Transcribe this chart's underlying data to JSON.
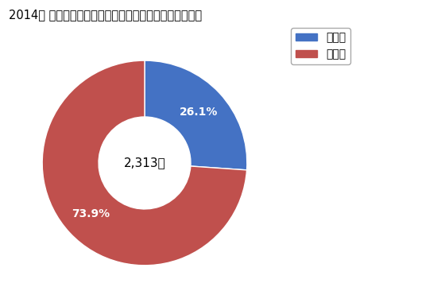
{
  "title": "2014年 商業の従業者数にしめる卸売業と小売業のシェア",
  "labels": [
    "小売業",
    "卸売業"
  ],
  "values": [
    26.1,
    73.9
  ],
  "colors": [
    "#4472C4",
    "#C0504D"
  ],
  "center_text": "2,313人",
  "legend_labels": [
    "小売業",
    "卸売業"
  ],
  "pct_labels": [
    "26.1%",
    "73.9%"
  ],
  "background_color": "#FFFFFF",
  "title_fontsize": 10.5,
  "donut_width": 0.55,
  "startangle": 90
}
